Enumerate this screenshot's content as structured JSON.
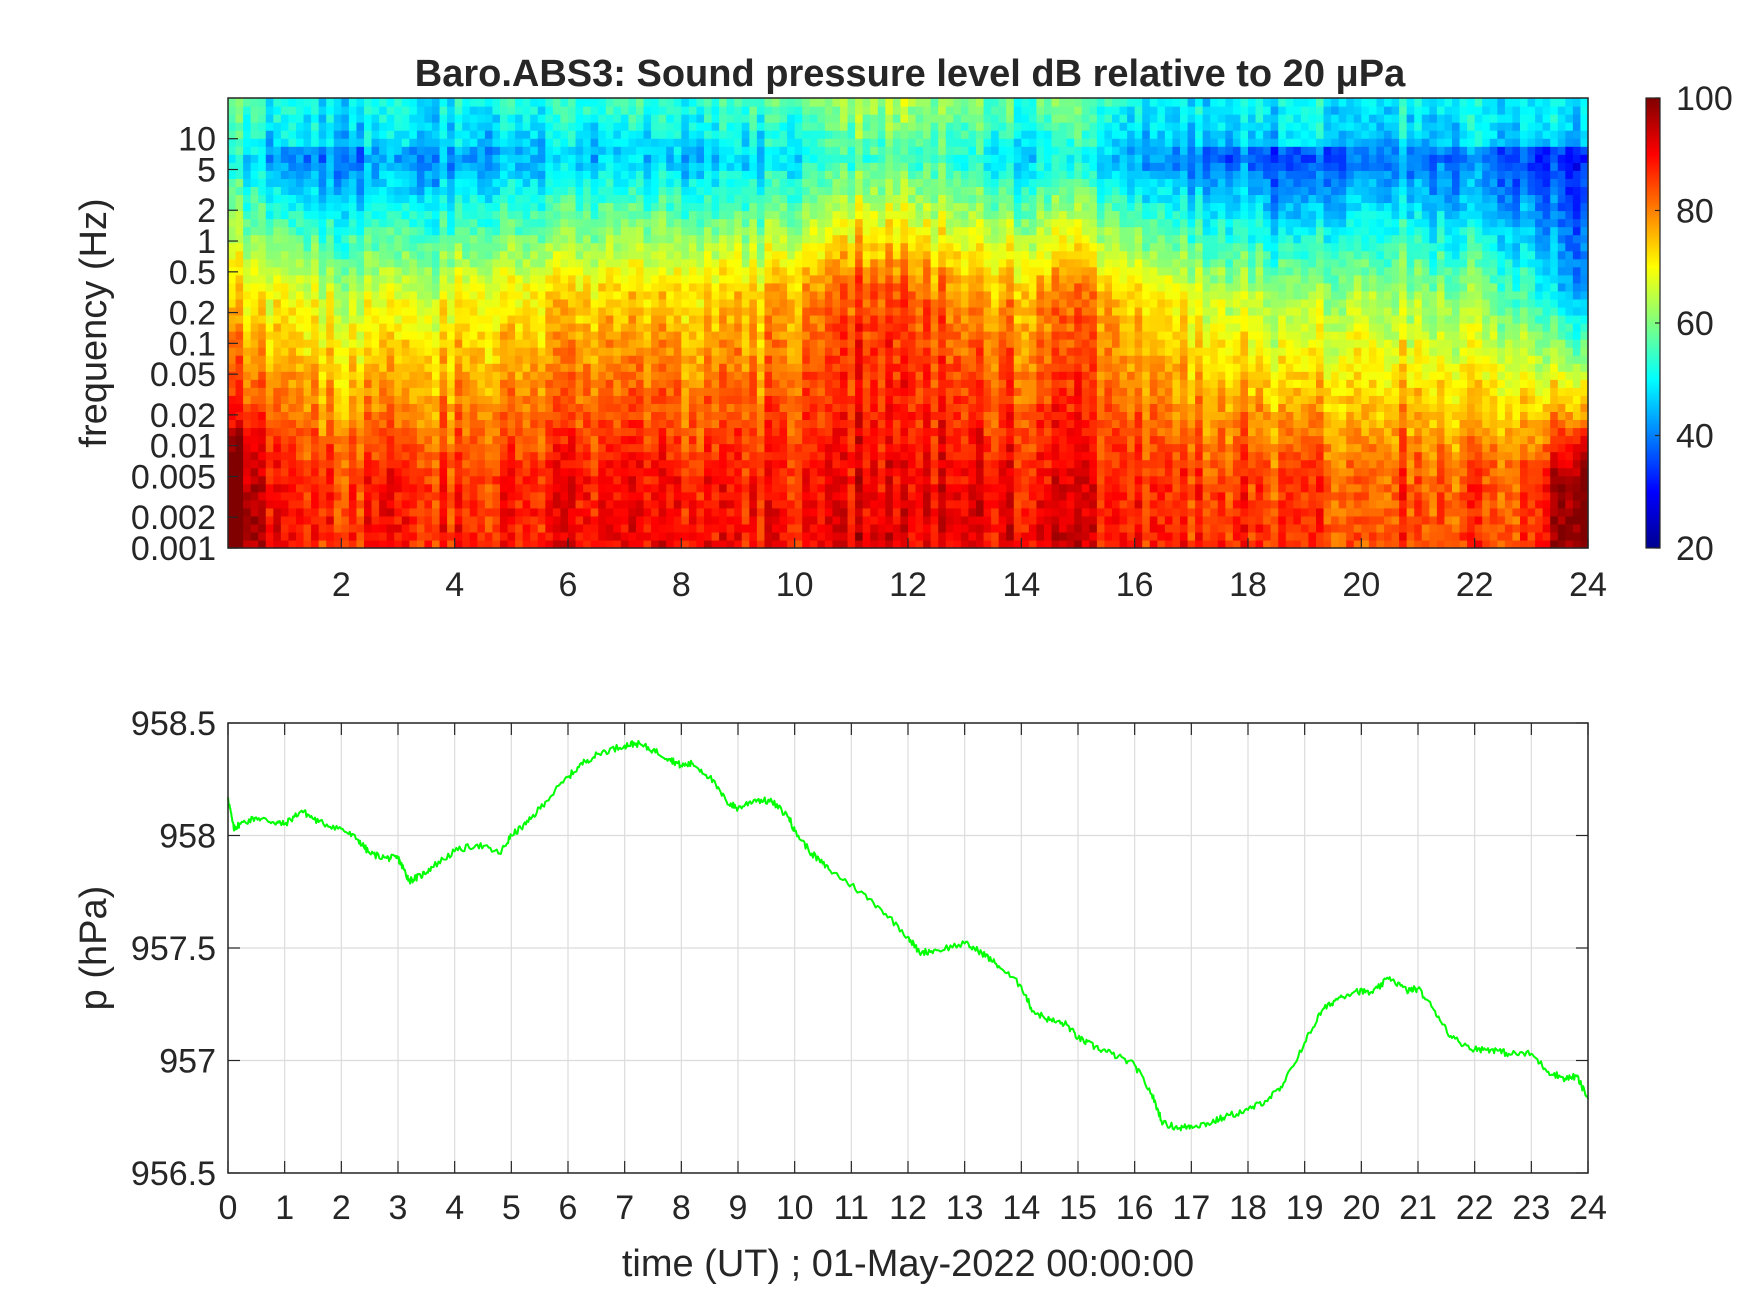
{
  "figure": {
    "colors": {
      "background": "#ffffff",
      "axis": "#262626",
      "grid": "#dcdcdc",
      "line": "#00ff00"
    }
  },
  "chart_data": [
    {
      "type": "heatmap",
      "title": "Baro.ABS3: Sound pressure level dB relative to 20 μPa",
      "ylabel": "frequency (Hz)",
      "xlabel": "",
      "x_ticks": [
        "2",
        "4",
        "6",
        "8",
        "10",
        "12",
        "14",
        "16",
        "18",
        "20",
        "22",
        "24"
      ],
      "x_tick_values": [
        2,
        4,
        6,
        8,
        10,
        12,
        14,
        16,
        18,
        20,
        22,
        24
      ],
      "xlim": [
        0,
        24
      ],
      "y_scale": "log",
      "y_ticks": [
        "0.001",
        "0.002",
        "0.005",
        "0.01",
        "0.02",
        "0.05",
        "0.1",
        "0.2",
        "0.5",
        "1",
        "2",
        "5",
        "10"
      ],
      "y_tick_values": [
        0.001,
        0.002,
        0.005,
        0.01,
        0.02,
        0.05,
        0.1,
        0.2,
        0.5,
        1,
        2,
        5,
        10
      ],
      "ylim": [
        0.001,
        25
      ],
      "colorbar": {
        "ticks": [
          "20",
          "40",
          "60",
          "80",
          "100"
        ],
        "tick_values": [
          20,
          40,
          60,
          80,
          100
        ],
        "range": [
          20,
          100
        ],
        "colormap": "jet"
      },
      "intensity_by_hour": {
        "hours": [
          0.5,
          1,
          2,
          3,
          4,
          5,
          6,
          7,
          8,
          9,
          10,
          11,
          12,
          13,
          14,
          15,
          16,
          17,
          18,
          19,
          20,
          21,
          22,
          23,
          23.5
        ],
        "low_freq_dB": [
          95,
          85,
          86,
          87,
          86,
          87,
          88,
          89,
          88,
          87,
          89,
          91,
          92,
          90,
          89,
          90,
          88,
          86,
          85,
          84,
          84,
          84,
          83,
          84,
          95
        ],
        "mid_freq_dB": [
          72,
          66,
          66,
          65,
          68,
          70,
          72,
          73,
          72,
          72,
          78,
          84,
          86,
          78,
          76,
          80,
          74,
          68,
          64,
          60,
          66,
          62,
          60,
          55,
          45
        ],
        "high_freq_dB": [
          50,
          38,
          40,
          41,
          42,
          44,
          45,
          46,
          45,
          46,
          50,
          55,
          58,
          52,
          48,
          50,
          44,
          40,
          38,
          33,
          42,
          40,
          38,
          35,
          33
        ]
      }
    },
    {
      "type": "line",
      "ylabel": "p (hPa)",
      "xlabel": "time (UT) ; 01-May-2022 00:00:00",
      "x_ticks": [
        "0",
        "1",
        "2",
        "3",
        "4",
        "5",
        "6",
        "7",
        "8",
        "9",
        "10",
        "11",
        "12",
        "13",
        "14",
        "15",
        "16",
        "17",
        "18",
        "19",
        "20",
        "21",
        "22",
        "23",
        "24"
      ],
      "x_tick_values": [
        0,
        1,
        2,
        3,
        4,
        5,
        6,
        7,
        8,
        9,
        10,
        11,
        12,
        13,
        14,
        15,
        16,
        17,
        18,
        19,
        20,
        21,
        22,
        23,
        24
      ],
      "xlim": [
        0,
        24
      ],
      "y_ticks": [
        "956.5",
        "957",
        "957.5",
        "958",
        "958.5"
      ],
      "y_tick_values": [
        956.5,
        957,
        957.5,
        958,
        958.5
      ],
      "ylim": [
        956.5,
        958.5
      ],
      "grid": true,
      "series": [
        {
          "x": [
            0,
            0.1,
            0.2,
            0.5,
            0.8,
            1.0,
            1.3,
            1.6,
            2.0,
            2.3,
            2.5,
            2.8,
            3.0,
            3.1,
            3.2,
            3.4,
            3.6,
            4.0,
            4.4,
            4.8,
            5.0,
            5.3,
            5.6,
            6.0,
            6.3,
            6.6,
            7.0,
            7.2,
            7.5,
            7.8,
            8.0,
            8.2,
            8.5,
            8.8,
            9.0,
            9.3,
            9.6,
            9.9,
            10.0,
            10.3,
            10.6,
            11.0,
            11.5,
            12.0,
            12.2,
            12.5,
            13.0,
            13.3,
            13.6,
            14.0,
            14.2,
            14.5,
            14.8,
            15.0,
            15.3,
            15.6,
            16.0,
            16.3,
            16.5,
            16.8,
            17.0,
            17.3,
            17.6,
            18.0,
            18.3,
            18.6,
            19.0,
            19.3,
            19.6,
            19.9,
            20.2,
            20.5,
            20.8,
            21.0,
            21.3,
            21.6,
            22.0,
            22.3,
            22.6,
            23.0,
            23.3,
            23.6,
            23.8,
            24.0
          ],
          "y": [
            958.17,
            958.03,
            958.05,
            958.08,
            958.06,
            958.05,
            958.11,
            958.06,
            958.03,
            957.98,
            957.92,
            957.9,
            957.9,
            957.85,
            957.8,
            957.82,
            957.86,
            957.93,
            957.96,
            957.92,
            958.0,
            958.06,
            958.15,
            958.26,
            958.33,
            958.37,
            958.4,
            958.41,
            958.38,
            958.34,
            958.31,
            958.32,
            958.26,
            958.15,
            958.12,
            958.16,
            958.15,
            958.08,
            958.02,
            957.92,
            957.85,
            957.78,
            957.68,
            957.55,
            957.48,
            957.49,
            957.52,
            957.48,
            957.42,
            957.33,
            957.22,
            957.18,
            957.16,
            957.1,
            957.06,
            957.03,
            956.98,
            956.85,
            956.72,
            956.7,
            956.71,
            956.72,
            956.75,
            956.78,
            956.82,
            956.88,
            957.08,
            957.22,
            957.28,
            957.31,
            957.3,
            957.37,
            957.31,
            957.32,
            957.22,
            957.1,
            957.05,
            957.05,
            957.03,
            957.03,
            956.95,
            956.92,
            956.93,
            956.83
          ]
        }
      ]
    }
  ]
}
